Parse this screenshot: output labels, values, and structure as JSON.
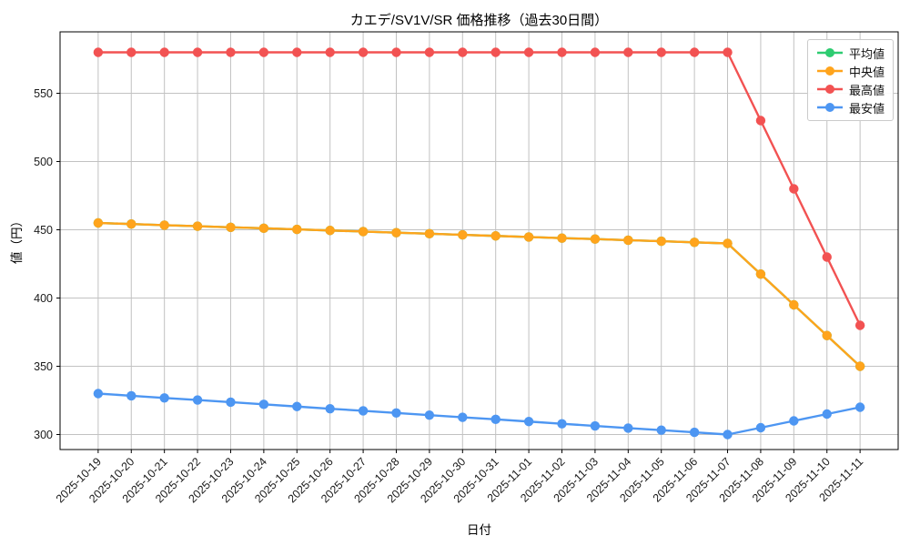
{
  "chart_data": {
    "type": "line",
    "title": "カエデ/SV1V/SR 価格推移（過去30日間）",
    "xlabel": "日付",
    "ylabel": "値（円）",
    "grid": true,
    "legend_position": "upper-right",
    "marker": "circle",
    "ylim": [
      289,
      595
    ],
    "yticks": [
      300,
      350,
      400,
      450,
      500,
      550
    ],
    "categories": [
      "2025-10-19",
      "2025-10-20",
      "2025-10-21",
      "2025-10-22",
      "2025-10-23",
      "2025-10-24",
      "2025-10-25",
      "2025-10-26",
      "2025-10-27",
      "2025-10-28",
      "2025-10-29",
      "2025-10-30",
      "2025-10-31",
      "2025-11-01",
      "2025-11-02",
      "2025-11-03",
      "2025-11-04",
      "2025-11-05",
      "2025-11-06",
      "2025-11-07",
      "2025-11-08",
      "2025-11-09",
      "2025-11-10",
      "2025-11-11"
    ],
    "series": [
      {
        "name": "平均値",
        "color": "#2ecc71",
        "note": "hidden exactly beneath 中央値 line",
        "values": [
          455,
          454.2,
          453.4,
          452.6,
          451.8,
          451.1,
          450.3,
          449.5,
          448.7,
          447.9,
          447.1,
          446.3,
          445.5,
          444.7,
          443.9,
          443.2,
          442.4,
          441.6,
          440.8,
          440,
          417.5,
          395,
          372.5,
          350
        ]
      },
      {
        "name": "中央値",
        "color": "#ffa41c",
        "values": [
          455,
          454.2,
          453.4,
          452.6,
          451.8,
          451.1,
          450.3,
          449.5,
          448.7,
          447.9,
          447.1,
          446.3,
          445.5,
          444.7,
          443.9,
          443.2,
          442.4,
          441.6,
          440.8,
          440,
          417.5,
          395,
          372.5,
          350
        ]
      },
      {
        "name": "最高値",
        "color": "#f25252",
        "values": [
          580,
          580,
          580,
          580,
          580,
          580,
          580,
          580,
          580,
          580,
          580,
          580,
          580,
          580,
          580,
          580,
          580,
          580,
          580,
          580,
          530,
          480,
          430,
          380
        ]
      },
      {
        "name": "最安値",
        "color": "#4d96f2",
        "values": [
          330,
          328.4,
          326.8,
          325.3,
          323.7,
          322.1,
          320.5,
          318.9,
          317.4,
          315.8,
          314.2,
          312.6,
          311.1,
          309.5,
          307.9,
          306.3,
          304.7,
          303.2,
          301.6,
          300,
          305,
          310,
          315,
          320
        ]
      }
    ]
  },
  "colors": {
    "grid": "#c2c2c2",
    "spine": "#000000",
    "tick_text": "#1a1a1a"
  }
}
